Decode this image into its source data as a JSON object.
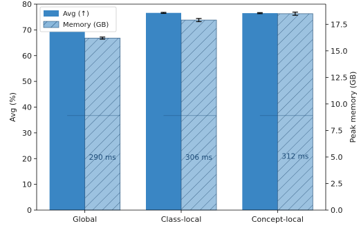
{
  "chart_data": {
    "type": "bar",
    "categories": [
      "Global",
      "Class-local",
      "Concept-local"
    ],
    "series": [
      {
        "name": "Avg (↑)",
        "axis": "left",
        "values": [
          70.5,
          76.6,
          76.5
        ],
        "errors": [
          0.2,
          0.2,
          0.2
        ],
        "color": "#3a86c4"
      },
      {
        "name": "Memory (GB)",
        "axis": "right",
        "values": [
          16.2,
          17.9,
          18.5
        ],
        "errors": [
          0.1,
          0.15,
          0.15
        ],
        "color": "#8bb8db",
        "hatch": true
      }
    ],
    "annotations": [
      "290 ms",
      "306 ms",
      "312 ms"
    ],
    "annotation_y_right": [
      5.0,
      5.0,
      5.1
    ],
    "inner_line_y_right": 8.9,
    "ylabel": "Avg (%)",
    "ylabel_right": "Peak memory (GB)",
    "ylim": [
      0,
      80
    ],
    "ylim_right": [
      0,
      19.4
    ],
    "yticks": [
      "0",
      "10",
      "20",
      "30",
      "40",
      "50",
      "60",
      "70",
      "80"
    ],
    "yticks_right": [
      "0.0",
      "2.5",
      "5.0",
      "7.5",
      "10.0",
      "12.5",
      "15.0",
      "17.5"
    ],
    "legend": "top-left",
    "grid": false
  }
}
